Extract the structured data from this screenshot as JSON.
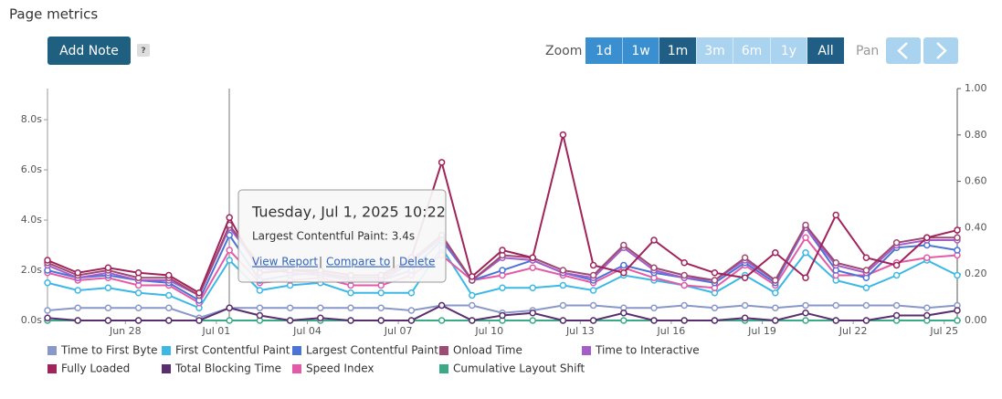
{
  "header": {
    "title": "Page metrics",
    "add_note": "Add Note",
    "help": "?",
    "zoom_label": "Zoom",
    "zoom_options": [
      "1d",
      "1w",
      "1m",
      "3m",
      "6m",
      "1y",
      "All"
    ],
    "pan_label": "Pan"
  },
  "tooltip": {
    "title": "Tuesday, Jul 1, 2025 10:22",
    "line": "Largest Contentful Paint: 3.4s",
    "links": [
      "View Report",
      "Compare to",
      "Delete"
    ],
    "separator": "|"
  },
  "chart_data": {
    "type": "line",
    "categories": [
      null,
      null,
      null,
      "Jun 28",
      null,
      null,
      "Jul 01",
      null,
      null,
      "Jul 04",
      null,
      null,
      "Jul 07",
      null,
      null,
      "Jul 10",
      null,
      null,
      "Jul 13",
      null,
      null,
      "Jul 16",
      null,
      null,
      "Jul 19",
      null,
      null,
      "Jul 22",
      null,
      null,
      "Jul 25"
    ],
    "ylim": [
      0,
      9.24
    ],
    "yticks": [
      {
        "value": 0,
        "label": "0.0s"
      },
      {
        "value": 2,
        "label": "2.0s"
      },
      {
        "value": 4,
        "label": "4.0s"
      },
      {
        "value": 6,
        "label": "6.0s"
      },
      {
        "value": 8,
        "label": "8.0s"
      }
    ],
    "y2lim": [
      0,
      1
    ],
    "y2ticks": [
      {
        "value": 0,
        "label": "0.00"
      },
      {
        "value": 0.2,
        "label": "0.20"
      },
      {
        "value": 0.4,
        "label": "0.40"
      },
      {
        "value": 0.6,
        "label": "0.60"
      },
      {
        "value": 0.8,
        "label": "0.80"
      },
      {
        "value": 1,
        "label": "1.00"
      }
    ],
    "series": [
      {
        "name": "Time to First Byte",
        "color": "#8a97c9",
        "values": [
          0.4,
          0.5,
          0.5,
          0.5,
          0.5,
          0.1,
          0.5,
          0.5,
          0.5,
          0.5,
          0.5,
          0.5,
          0.4,
          0.6,
          0.6,
          0.3,
          0.4,
          0.6,
          0.6,
          0.5,
          0.5,
          0.6,
          0.5,
          0.6,
          0.5,
          0.6,
          0.6,
          0.6,
          0.6,
          0.5,
          0.6
        ]
      },
      {
        "name": "First Contentful Paint",
        "color": "#3cb8e6",
        "values": [
          1.5,
          1.2,
          1.3,
          1.1,
          1.0,
          0.5,
          2.4,
          1.2,
          1.4,
          1.5,
          1.1,
          1.1,
          1.1,
          2.9,
          1.0,
          1.3,
          1.3,
          1.4,
          1.2,
          1.8,
          1.6,
          1.4,
          1.1,
          1.8,
          1.1,
          2.7,
          1.6,
          1.3,
          1.8,
          2.4,
          1.8
        ]
      },
      {
        "name": "Largest Contentful Paint",
        "color": "#4a74d6",
        "values": [
          2.0,
          1.7,
          1.8,
          1.6,
          1.5,
          0.8,
          3.4,
          1.6,
          1.8,
          1.9,
          1.6,
          1.6,
          2.0,
          3.2,
          1.6,
          2.0,
          2.4,
          1.9,
          1.6,
          2.2,
          1.9,
          1.7,
          1.5,
          2.3,
          1.5,
          3.7,
          2.0,
          1.7,
          2.9,
          3.0,
          2.8
        ]
      },
      {
        "name": "Onload Time",
        "color": "#9e4a72",
        "values": [
          2.3,
          1.8,
          2.0,
          1.7,
          1.7,
          1.0,
          3.8,
          2.2,
          2.0,
          1.9,
          1.7,
          1.7,
          2.4,
          3.4,
          1.6,
          2.6,
          2.5,
          2.0,
          1.8,
          3.0,
          2.1,
          1.8,
          1.6,
          2.5,
          1.6,
          3.8,
          2.3,
          2.0,
          3.1,
          3.3,
          3.3
        ]
      },
      {
        "name": "Time to Interactive",
        "color": "#a35ec9",
        "values": [
          2.2,
          1.7,
          1.9,
          1.6,
          1.6,
          1.0,
          3.7,
          2.1,
          1.9,
          1.8,
          1.6,
          1.6,
          2.3,
          3.3,
          1.6,
          2.5,
          2.4,
          1.9,
          1.7,
          2.9,
          2.0,
          1.7,
          1.6,
          2.4,
          1.6,
          3.7,
          2.2,
          1.9,
          3.0,
          3.2,
          3.2
        ]
      },
      {
        "name": "Fully Loaded",
        "color": "#a0245a",
        "values": [
          2.4,
          1.9,
          2.1,
          1.9,
          1.8,
          1.1,
          4.1,
          1.9,
          2.0,
          2.0,
          1.8,
          1.8,
          2.5,
          6.3,
          1.75,
          2.8,
          2.5,
          7.4,
          2.2,
          1.9,
          3.2,
          2.3,
          1.9,
          1.7,
          2.7,
          1.7,
          4.2,
          2.5,
          2.2,
          3.3,
          3.6
        ]
      },
      {
        "name": "Total Blocking Time",
        "color": "#5a2d6e",
        "values": [
          0.1,
          0,
          0,
          0,
          0,
          0,
          0.5,
          0.2,
          0,
          0.1,
          0,
          0,
          0,
          0.6,
          0,
          0.2,
          0.3,
          0,
          0,
          0.3,
          0,
          0,
          0,
          0.1,
          0,
          0.3,
          0,
          0,
          0.2,
          0.2,
          0.4
        ]
      },
      {
        "name": "Speed Index",
        "color": "#e55aa6",
        "values": [
          1.9,
          1.6,
          1.7,
          1.4,
          1.4,
          0.7,
          2.8,
          1.5,
          1.6,
          1.7,
          1.4,
          1.4,
          1.8,
          2.6,
          1.6,
          1.8,
          2.1,
          1.8,
          1.5,
          2.1,
          1.7,
          1.4,
          1.3,
          2.2,
          1.4,
          3.3,
          1.8,
          1.8,
          2.3,
          2.5,
          2.6
        ]
      },
      {
        "name": "Cumulative Layout Shift",
        "color": "#3aaa86",
        "axis": "y2",
        "values": [
          0,
          0,
          0,
          0,
          0,
          0,
          0,
          0,
          0,
          0,
          0,
          0,
          0,
          0,
          0,
          0,
          0,
          0,
          0,
          0,
          0,
          0,
          0,
          0,
          0,
          0,
          0,
          0,
          0,
          0,
          0
        ]
      }
    ]
  }
}
